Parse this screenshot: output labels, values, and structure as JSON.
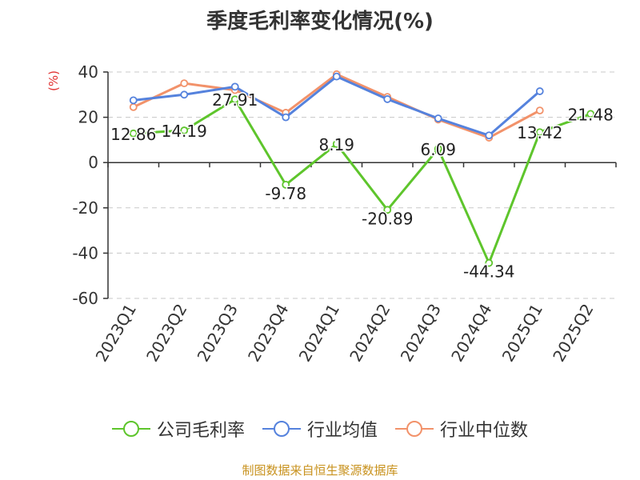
{
  "chart_data": {
    "type": "line",
    "title": "季度毛利率变化情况(%)",
    "unit_label": "(%)",
    "categories": [
      "2023Q1",
      "2023Q2",
      "2023Q3",
      "2023Q4",
      "2024Q1",
      "2024Q2",
      "2024Q3",
      "2024Q4",
      "2025Q1",
      "2025Q2"
    ],
    "ylim": [
      -60,
      40
    ],
    "yticks": [
      40,
      20,
      0,
      -20,
      -40,
      -60
    ],
    "grid": true,
    "legend_position": "bottom",
    "series": [
      {
        "name": "公司毛利率",
        "color": "#5ec52c",
        "labeled": true,
        "values": [
          12.86,
          14.19,
          27.91,
          -9.78,
          8.19,
          -20.89,
          6.09,
          -44.34,
          13.42,
          21.48
        ],
        "labels": [
          "12.86",
          "14.19",
          "27.91",
          "-9.78",
          "8.19",
          "-20.89",
          "6.09",
          "-44.34",
          "13.42",
          "21.48"
        ]
      },
      {
        "name": "行业均值",
        "color": "#5582dd",
        "labeled": false,
        "values": [
          27.5,
          30.0,
          33.5,
          20.0,
          38.0,
          28.0,
          19.5,
          12.0,
          31.5,
          null
        ]
      },
      {
        "name": "行业中位数",
        "color": "#f2926a",
        "labeled": false,
        "values": [
          24.5,
          35.0,
          32.0,
          22.0,
          39.0,
          29.0,
          19.0,
          11.0,
          23.0,
          null
        ]
      }
    ],
    "source": "制图数据来自恒生聚源数据库"
  }
}
